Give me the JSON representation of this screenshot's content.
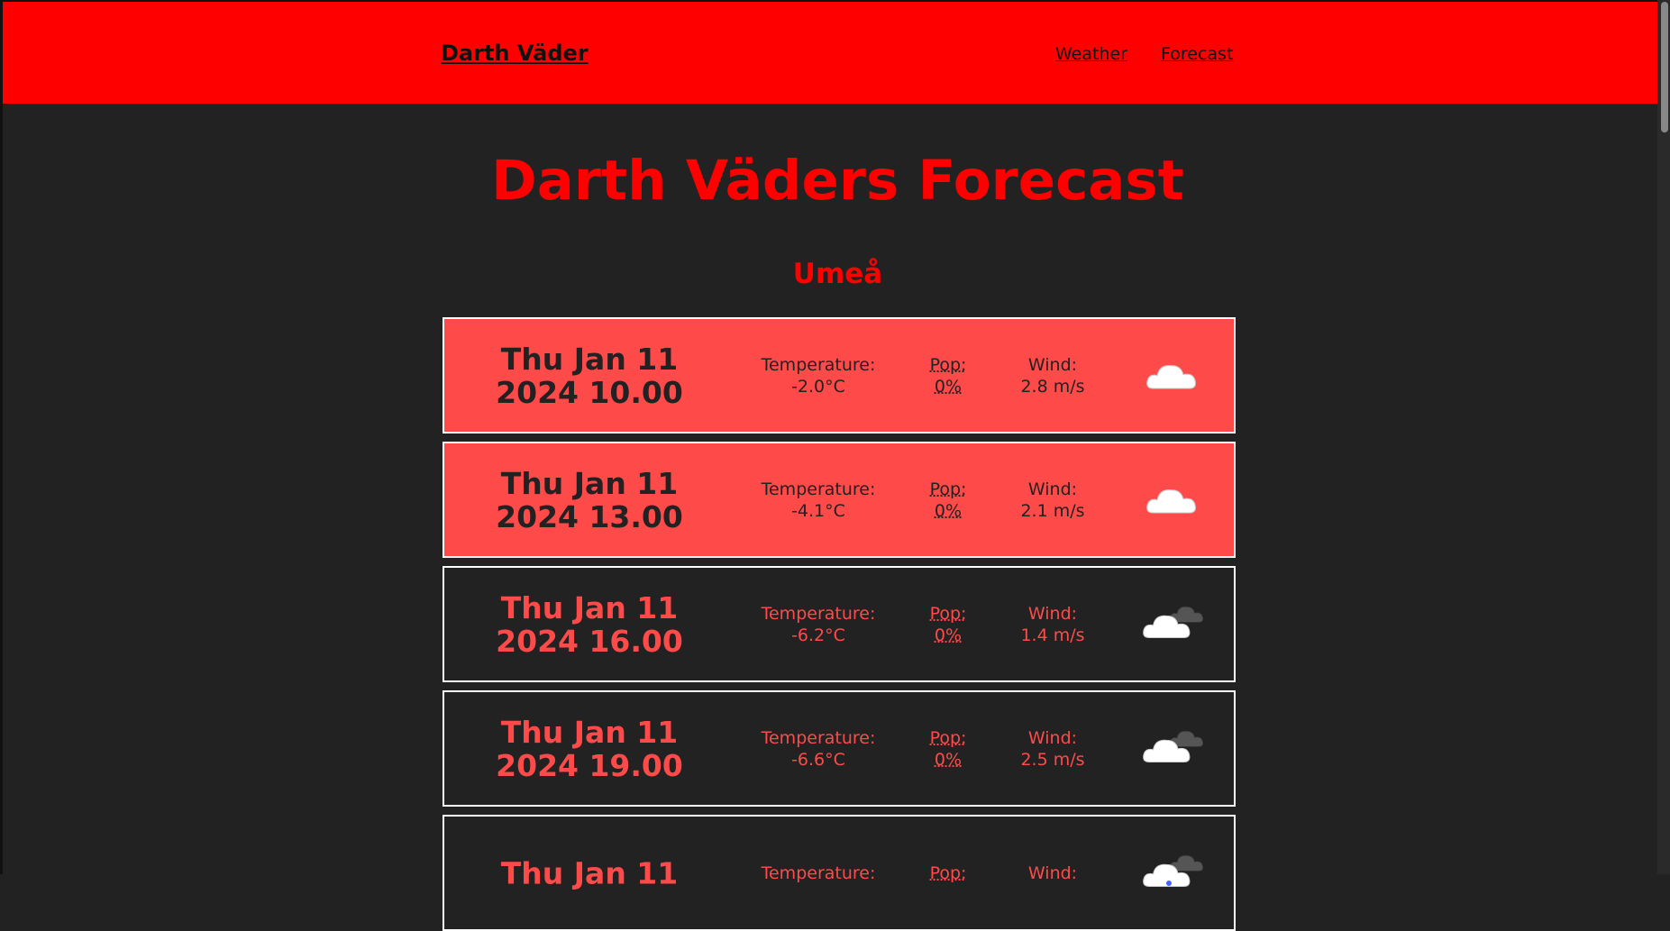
{
  "header": {
    "brand": "Darth Väder",
    "nav": [
      "Weather",
      "Forecast"
    ]
  },
  "title": "Darth Väders Forecast",
  "location": "Umeå",
  "forecasts": [
    {
      "date": "Thu Jan 11",
      "time": "2024 10.00",
      "temperature_label": "Temperature:",
      "temperature": "-2.0°C",
      "pop_label": "Pop:",
      "pop": "0%",
      "wind_label": "Wind:",
      "wind": "2.8 m/s"
    },
    {
      "date": "Thu Jan 11",
      "time": "2024 13.00",
      "temperature_label": "Temperature:",
      "temperature": "-4.1°C",
      "pop_label": "Pop:",
      "pop": "0%",
      "wind_label": "Wind:",
      "wind": "2.1 m/s"
    },
    {
      "date": "Thu Jan 11",
      "time": "2024 16.00",
      "temperature_label": "Temperature:",
      "temperature": "-6.2°C",
      "pop_label": "Pop:",
      "pop": "0%",
      "wind_label": "Wind:",
      "wind": "1.4 m/s"
    },
    {
      "date": "Thu Jan 11",
      "time": "2024 19.00",
      "temperature_label": "Temperature:",
      "temperature": "-6.6°C",
      "pop_label": "Pop:",
      "pop": "0%",
      "wind_label": "Wind:",
      "wind": "2.5 m/s"
    },
    {
      "date": "Thu Jan 11",
      "temperature_label": "Temperature:",
      "pop_label": "Pop:",
      "wind_label": "Wind:"
    }
  ]
}
